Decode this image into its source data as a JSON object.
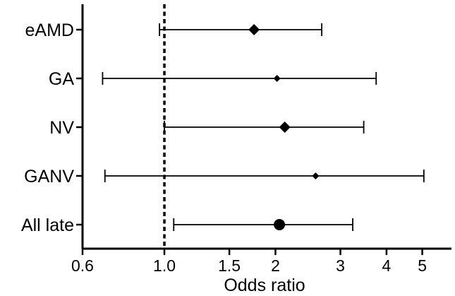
{
  "chart_data": {
    "type": "scatter",
    "subtype": "forest-plot",
    "x_scale": "log",
    "xlabel": "Odds ratio",
    "xlim": [
      0.6,
      6.0
    ],
    "xticks": [
      {
        "value": 0.6,
        "label": "0.6"
      },
      {
        "value": 1.0,
        "label": "1.0"
      },
      {
        "value": 1.5,
        "label": "1.5"
      },
      {
        "value": 2,
        "label": "2"
      },
      {
        "value": 3,
        "label": "3"
      },
      {
        "value": 4,
        "label": "4"
      },
      {
        "value": 5,
        "label": "5"
      }
    ],
    "reference_line": {
      "x": 1.0,
      "style": "dashed"
    },
    "categories": [
      "eAMD",
      "GA",
      "NV",
      "GANV",
      "All late"
    ],
    "rows": [
      {
        "label": "eAMD",
        "estimate": 1.75,
        "ci_low": 0.97,
        "ci_high": 2.67,
        "marker": "diamond-large"
      },
      {
        "label": "GA",
        "estimate": 2.02,
        "ci_low": 0.68,
        "ci_high": 3.75,
        "marker": "diamond-small"
      },
      {
        "label": "NV",
        "estimate": 2.12,
        "ci_low": 1.0,
        "ci_high": 3.47,
        "marker": "diamond-large"
      },
      {
        "label": "GANV",
        "estimate": 2.57,
        "ci_low": 0.69,
        "ci_high": 5.05,
        "marker": "diamond-small"
      },
      {
        "label": "All late",
        "estimate": 2.05,
        "ci_low": 1.06,
        "ci_high": 3.24,
        "marker": "circle"
      }
    ],
    "grid": false,
    "legend": "none"
  }
}
